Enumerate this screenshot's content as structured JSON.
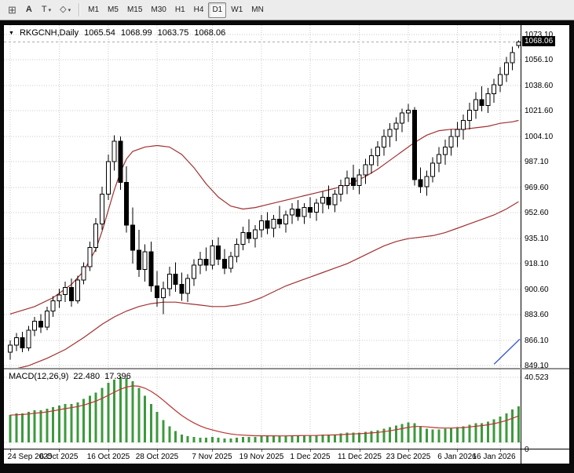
{
  "colors": {
    "background": "#ffffff",
    "frame": "#000000",
    "grid": "#c9c9c9",
    "bull": "#ffffff",
    "bear": "#000000",
    "outline": "#000000",
    "band": "#a03030",
    "macd_histogram": "#3c9a3c",
    "macd_signal": "#bb3333",
    "trendline": "#3a5fcd",
    "current_price_bg": "#000000",
    "current_price_fg": "#ffffff",
    "bid_line": "#aaaaaa"
  },
  "toolbar": {
    "tools": [
      {
        "name": "chart-grid",
        "glyph": "⊞"
      },
      {
        "name": "annotate-a",
        "glyph": "A"
      },
      {
        "name": "annotate-t",
        "glyph": "T",
        "caret": "▾"
      },
      {
        "name": "shapes",
        "glyph": "◇",
        "caret": "▾"
      }
    ],
    "timeframes": [
      {
        "label": "M1",
        "active": false
      },
      {
        "label": "M5",
        "active": false
      },
      {
        "label": "M15",
        "active": false
      },
      {
        "label": "M30",
        "active": false
      },
      {
        "label": "H1",
        "active": false
      },
      {
        "label": "H4",
        "active": false
      },
      {
        "label": "D1",
        "active": true
      },
      {
        "label": "W1",
        "active": false
      },
      {
        "label": "MN",
        "active": false
      }
    ]
  },
  "header": {
    "arrow": "▼",
    "symbol": "RKGCNH,Daily",
    "open": "1065.54",
    "high": "1068.99",
    "low": "1063.75",
    "close": "1068.06"
  },
  "price_axis": {
    "ticks": [
      "1073.10",
      "1056.10",
      "1038.60",
      "1021.60",
      "1004.10",
      "987.10",
      "969.60",
      "952.60",
      "935.10",
      "918.10",
      "900.60",
      "883.60",
      "866.10",
      "849.10"
    ],
    "current": "1068.06"
  },
  "macd_axis": {
    "max": "40.523",
    "zero": "0"
  },
  "macd_label": {
    "name": "MACD(12,26,9)",
    "main_value": "22.480",
    "signal_value": "17.396"
  },
  "chart_data": [
    {
      "type": "candlestick",
      "symbol": "RKGCNH",
      "timeframe": "Daily",
      "ylim": [
        849.1,
        1073.1
      ],
      "time_labels": [
        [
          0,
          "24 Sep 2025"
        ],
        [
          8,
          "6 Oct 2025"
        ],
        [
          16,
          "16 Oct 2025"
        ],
        [
          24,
          "28 Oct 2025"
        ],
        [
          33,
          "7 Nov 2025"
        ],
        [
          41,
          "19 Nov 2025"
        ],
        [
          49,
          "1 Dec 2025"
        ],
        [
          57,
          "11 Dec 2025"
        ],
        [
          65,
          "23 Dec 2025"
        ],
        [
          73,
          "6 Jan 2026"
        ],
        [
          80,
          "16 Jan 2026"
        ]
      ],
      "ohlc": [
        [
          858,
          866,
          853,
          863
        ],
        [
          863,
          871,
          859,
          868
        ],
        [
          868,
          872,
          858,
          861
        ],
        [
          861,
          876,
          859,
          873
        ],
        [
          873,
          882,
          869,
          879
        ],
        [
          879,
          884,
          871,
          875
        ],
        [
          875,
          889,
          873,
          886
        ],
        [
          886,
          896,
          882,
          893
        ],
        [
          893,
          901,
          888,
          897
        ],
        [
          897,
          906,
          892,
          902
        ],
        [
          902,
          908,
          889,
          893
        ],
        [
          893,
          910,
          891,
          907
        ],
        [
          907,
          919,
          904,
          916
        ],
        [
          916,
          933,
          913,
          929
        ],
        [
          929,
          949,
          926,
          945
        ],
        [
          945,
          970,
          941,
          965
        ],
        [
          965,
          992,
          961,
          987
        ],
        [
          987,
          1005,
          981,
          1001
        ],
        [
          1001,
          1004,
          968,
          973
        ],
        [
          973,
          984,
          939,
          944
        ],
        [
          944,
          956,
          918,
          927
        ],
        [
          927,
          941,
          909,
          914
        ],
        [
          914,
          931,
          906,
          926
        ],
        [
          926,
          933,
          899,
          903
        ],
        [
          903,
          913,
          889,
          895
        ],
        [
          895,
          906,
          884,
          901
        ],
        [
          901,
          916,
          896,
          911
        ],
        [
          911,
          919,
          899,
          904
        ],
        [
          904,
          912,
          893,
          898
        ],
        [
          898,
          911,
          892,
          908
        ],
        [
          908,
          921,
          903,
          917
        ],
        [
          917,
          926,
          911,
          921
        ],
        [
          921,
          929,
          913,
          917
        ],
        [
          917,
          934,
          914,
          930
        ],
        [
          930,
          936,
          917,
          921
        ],
        [
          921,
          928,
          911,
          915
        ],
        [
          915,
          926,
          912,
          923
        ],
        [
          923,
          935,
          919,
          931
        ],
        [
          931,
          943,
          927,
          939
        ],
        [
          939,
          948,
          932,
          935
        ],
        [
          935,
          944,
          929,
          941
        ],
        [
          941,
          951,
          936,
          947
        ],
        [
          947,
          953,
          938,
          942
        ],
        [
          942,
          951,
          936,
          948
        ],
        [
          948,
          957,
          942,
          945
        ],
        [
          945,
          954,
          939,
          951
        ],
        [
          951,
          959,
          945,
          955
        ],
        [
          955,
          961,
          947,
          950
        ],
        [
          950,
          959,
          945,
          956
        ],
        [
          956,
          963,
          949,
          953
        ],
        [
          953,
          962,
          947,
          959
        ],
        [
          959,
          967,
          952,
          963
        ],
        [
          963,
          971,
          955,
          958
        ],
        [
          958,
          968,
          953,
          965
        ],
        [
          965,
          975,
          960,
          971
        ],
        [
          971,
          981,
          965,
          976
        ],
        [
          976,
          985,
          968,
          971
        ],
        [
          971,
          982,
          965,
          978
        ],
        [
          978,
          989,
          972,
          985
        ],
        [
          985,
          996,
          979,
          991
        ],
        [
          991,
          1001,
          984,
          997
        ],
        [
          997,
          1009,
          991,
          1004
        ],
        [
          1004,
          1013,
          997,
          1009
        ],
        [
          1009,
          1017,
          1001,
          1013
        ],
        [
          1013,
          1023,
          1007,
          1020
        ],
        [
          1020,
          1026,
          1014,
          1022
        ],
        [
          1022,
          1024,
          971,
          975
        ],
        [
          975,
          983,
          966,
          970
        ],
        [
          970,
          981,
          964,
          977
        ],
        [
          977,
          990,
          973,
          986
        ],
        [
          986,
          997,
          980,
          992
        ],
        [
          992,
          1002,
          985,
          997
        ],
        [
          997,
          1009,
          991,
          1004
        ],
        [
          1004,
          1014,
          997,
          1009
        ],
        [
          1009,
          1019,
          1002,
          1015
        ],
        [
          1015,
          1027,
          1009,
          1022
        ],
        [
          1022,
          1034,
          1016,
          1029
        ],
        [
          1029,
          1038,
          1021,
          1025
        ],
        [
          1025,
          1037,
          1020,
          1033
        ],
        [
          1033,
          1043,
          1027,
          1039
        ],
        [
          1039,
          1051,
          1034,
          1046
        ],
        [
          1046,
          1058,
          1041,
          1054
        ],
        [
          1054,
          1065,
          1049,
          1061
        ],
        [
          1065.54,
          1068.99,
          1063.75,
          1068.06
        ]
      ],
      "overlays": {
        "upper_band": [
          [
            0,
            884
          ],
          [
            4,
            889
          ],
          [
            7,
            895
          ],
          [
            10,
            904
          ],
          [
            12,
            913
          ],
          [
            14,
            928
          ],
          [
            15,
            940
          ],
          [
            16,
            954
          ],
          [
            17,
            968
          ],
          [
            18,
            980
          ],
          [
            19,
            989
          ],
          [
            20,
            994
          ],
          [
            22,
            997
          ],
          [
            24,
            998
          ],
          [
            26,
            997
          ],
          [
            28,
            992
          ],
          [
            30,
            983
          ],
          [
            32,
            972
          ],
          [
            34,
            963
          ],
          [
            36,
            957
          ],
          [
            38,
            955
          ],
          [
            40,
            956
          ],
          [
            42,
            958
          ],
          [
            44,
            960
          ],
          [
            46,
            962
          ],
          [
            48,
            964
          ],
          [
            50,
            966
          ],
          [
            52,
            968
          ],
          [
            54,
            970
          ],
          [
            56,
            973
          ],
          [
            58,
            977
          ],
          [
            60,
            982
          ],
          [
            62,
            988
          ],
          [
            64,
            994
          ],
          [
            66,
            1000
          ],
          [
            68,
            1005
          ],
          [
            70,
            1008
          ],
          [
            72,
            1009
          ],
          [
            74,
            1009
          ],
          [
            76,
            1010
          ],
          [
            78,
            1011
          ],
          [
            80,
            1013
          ],
          [
            82,
            1014
          ],
          [
            83,
            1015
          ]
        ],
        "lower_band": [
          [
            0,
            846
          ],
          [
            3,
            849
          ],
          [
            6,
            854
          ],
          [
            9,
            860
          ],
          [
            12,
            868
          ],
          [
            15,
            877
          ],
          [
            17,
            882
          ],
          [
            19,
            886
          ],
          [
            21,
            889
          ],
          [
            23,
            891
          ],
          [
            25,
            892
          ],
          [
            27,
            892
          ],
          [
            29,
            891
          ],
          [
            31,
            890
          ],
          [
            33,
            889
          ],
          [
            35,
            889
          ],
          [
            37,
            890
          ],
          [
            39,
            892
          ],
          [
            41,
            895
          ],
          [
            43,
            899
          ],
          [
            45,
            903
          ],
          [
            47,
            906
          ],
          [
            49,
            909
          ],
          [
            51,
            912
          ],
          [
            53,
            915
          ],
          [
            55,
            918
          ],
          [
            57,
            922
          ],
          [
            59,
            926
          ],
          [
            61,
            930
          ],
          [
            63,
            933
          ],
          [
            65,
            935
          ],
          [
            67,
            936
          ],
          [
            69,
            937
          ],
          [
            71,
            939
          ],
          [
            73,
            942
          ],
          [
            75,
            945
          ],
          [
            77,
            948
          ],
          [
            79,
            951
          ],
          [
            81,
            955
          ],
          [
            83,
            960
          ]
        ],
        "trendline": {
          "from": [
            79,
            850
          ],
          "to": [
            84.5,
            867
          ]
        }
      }
    },
    {
      "type": "macd",
      "label": "MACD(12,26,9)",
      "params": [
        12,
        26,
        9
      ],
      "signal_period": 9,
      "last_main": 22.48,
      "last_signal": 17.396,
      "top_gridline": 40.523,
      "ylim": [
        0,
        44
      ],
      "values": [
        17,
        18,
        18,
        19,
        20,
        20,
        21,
        22,
        23,
        24,
        24,
        25,
        27,
        29,
        31,
        34,
        37,
        39,
        40.5,
        40,
        38,
        34,
        29,
        24,
        19,
        14,
        10,
        7,
        5,
        4,
        3.5,
        3,
        3,
        3.5,
        3,
        2.5,
        2.5,
        3,
        3.5,
        3.5,
        3.5,
        4,
        4,
        4,
        4,
        4,
        4.5,
        4.5,
        4.5,
        4.5,
        4.5,
        5,
        5,
        5,
        5.5,
        6,
        6,
        6,
        6.5,
        7,
        7.5,
        8.5,
        9.5,
        10.5,
        11.5,
        12.5,
        12,
        10,
        8.5,
        8,
        8,
        8.5,
        9,
        9.5,
        10,
        11,
        12,
        12,
        13,
        14.5,
        16,
        18,
        20.5,
        22.48
      ]
    }
  ]
}
